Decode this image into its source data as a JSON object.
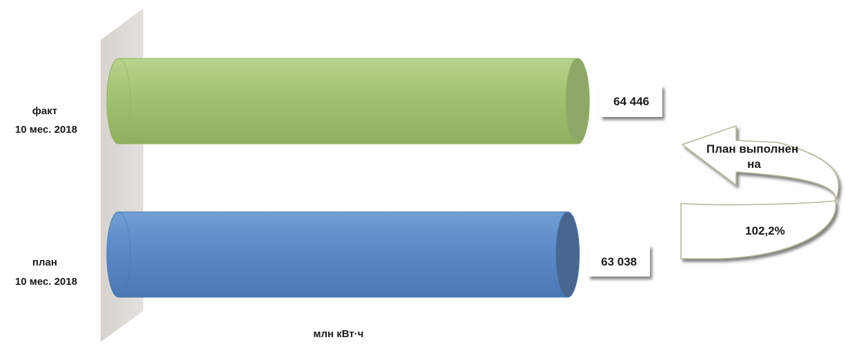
{
  "chart_data": {
    "type": "bar",
    "orientation": "horizontal",
    "style": "3d-cylinder",
    "categories": [
      [
        "факт",
        "10 мес. 2018"
      ],
      [
        "план",
        "10 мес. 2018"
      ]
    ],
    "values": [
      64446,
      63038
    ],
    "value_labels": [
      "64 446",
      "63 038"
    ],
    "colors": [
      "#a2c26f",
      "#5b8cc8"
    ],
    "xlabel": "млн кВт·ч",
    "ylabel": "",
    "title": "",
    "legend": false,
    "grid": false,
    "xlim": [
      0,
      64446
    ]
  },
  "callout": {
    "line1": "План выполнен",
    "line2": "на",
    "value": "102,2%"
  }
}
